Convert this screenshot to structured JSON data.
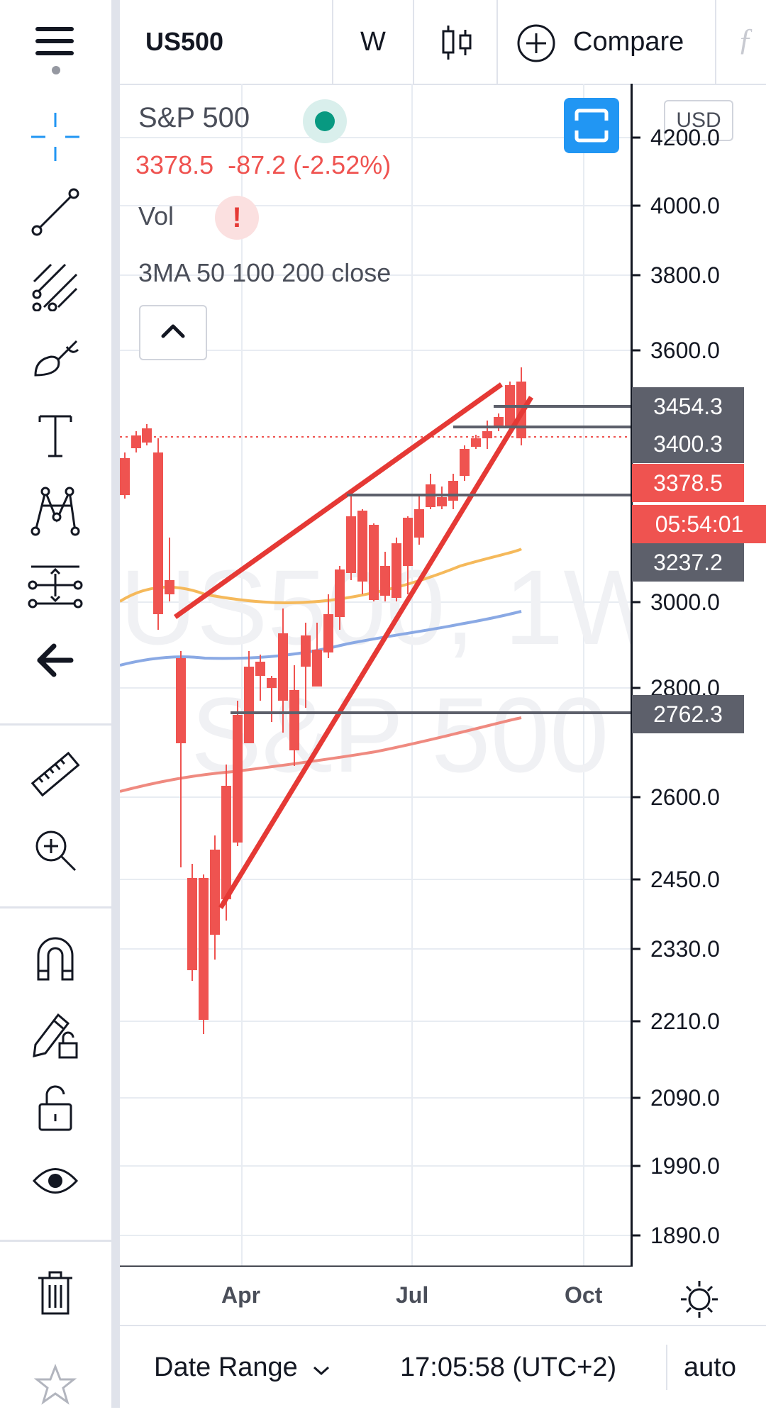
{
  "header": {
    "symbol": "US500",
    "interval": "W",
    "compare_label": "Compare",
    "indicators_icon": "fx-icon"
  },
  "legend": {
    "title": "S&P 500",
    "price": "3378.5",
    "change": "-87.2 (-2.52%)",
    "vol_label": "Vol",
    "ma_label": "3MA 50 100 200 close",
    "currency": "USD"
  },
  "watermark": {
    "line1": "US500, 1W",
    "line2": "S&P 500"
  },
  "price_axis": {
    "ticks": [
      "4200.0",
      "4000.0",
      "3800.0",
      "3600.0",
      "3000.0",
      "2800.0",
      "2600.0",
      "2450.0",
      "2330.0",
      "2210.0",
      "2090.0",
      "1990.0",
      "1890.0"
    ],
    "tags": [
      {
        "label": "3454.3",
        "color": "#5d606b"
      },
      {
        "label": "3400.3",
        "color": "#5d606b"
      },
      {
        "label": "3378.5",
        "color": "#ef5350"
      },
      {
        "label": "05:54:01",
        "color": "#ef5350"
      },
      {
        "label": "3237.2",
        "color": "#5d606b"
      },
      {
        "label": "2762.3",
        "color": "#5d606b"
      }
    ]
  },
  "time_axis": {
    "labels": [
      "Apr",
      "Jul",
      "Oct"
    ]
  },
  "footer": {
    "date_range_label": "Date Range",
    "time": "17:05:58 (UTC+2)",
    "scale_mode": "auto"
  },
  "colors": {
    "up": "#26a69a",
    "down": "#ef5350",
    "ma50": "#f5b95b",
    "ma100": "#8aa9e4",
    "ma200": "#ef8a80",
    "accent": "#2196f3"
  },
  "tools": [
    "crosshair-icon",
    "trendline-icon",
    "fib-icon",
    "brush-icon",
    "text-icon",
    "pattern-icon",
    "measure-icon",
    "back-arrow-icon",
    "ruler-icon",
    "zoom-in-icon",
    "magnet-icon",
    "lock-drawing-icon",
    "unlock-icon",
    "eye-icon",
    "trash-icon",
    "star-icon"
  ]
}
